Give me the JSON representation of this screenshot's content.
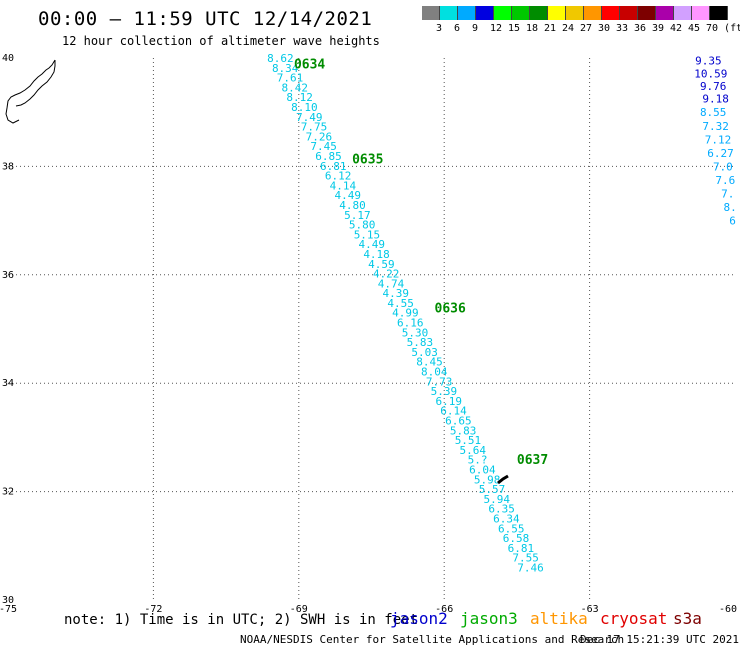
{
  "header": {
    "title": "00:00 – 11:59 UTC 12/14/2021",
    "subtitle": "12 hour collection of altimeter wave heights"
  },
  "legend": {
    "colors": [
      "#808080",
      "#00e0e0",
      "#00aaff",
      "#0000e0",
      "#00ff00",
      "#00c800",
      "#008c00",
      "#ffff00",
      "#f0c800",
      "#ff9600",
      "#ff0000",
      "#c80000",
      "#7d0000",
      "#aa00aa",
      "#d2a0ff",
      "#ff96ff",
      "#000000"
    ],
    "labels": [
      "3",
      "6",
      "9",
      "12",
      "15",
      "18",
      "21",
      "24",
      "27",
      "30",
      "33",
      "36",
      "39",
      "42",
      "45",
      "70 (ft)"
    ]
  },
  "chart_data": {
    "type": "scatter",
    "title": "12 hour collection of altimeter wave heights",
    "xlim": [
      -75,
      -60
    ],
    "ylim": [
      30,
      40
    ],
    "x_ticks": [
      -75,
      -72,
      -69,
      -66,
      -63,
      -60
    ],
    "y_ticks": [
      30,
      32,
      34,
      36,
      38,
      40
    ],
    "grid": true,
    "tracks": [
      {
        "name": "jason3",
        "color": "#00c8e6",
        "start": [
          -69.38,
          40.0
        ],
        "end": [
          -64.22,
          30.6
        ],
        "values": [
          "8.62",
          "8.34",
          "7.61",
          "8.42",
          "8.12",
          "8.10",
          "7.49",
          "7.75",
          "7.26",
          "7.45",
          "6.85",
          "6.81",
          "6.12",
          "4.14",
          "4.49",
          "4.80",
          "5.17",
          "5.80",
          "5.15",
          "4.49",
          "4.18",
          "4.59",
          "4.22",
          "4.74",
          "4.39",
          "4.55",
          "4.99",
          "6.16",
          "5.30",
          "5.83",
          "5.03",
          "8.45",
          "8.04",
          "7.73",
          "5.39",
          "6.19",
          "6.14",
          "6.65",
          "5.83",
          "5.51",
          "5.64",
          "5.?",
          "6.04",
          "5.98",
          "5.57",
          "5.94",
          "6.35",
          "6.34",
          "6.55",
          "6.58",
          "6.81",
          "7.55",
          "7.46"
        ],
        "time_labels": [
          {
            "text": "0634",
            "lon": -69.1,
            "lat": 39.9
          },
          {
            "text": "0635",
            "lon": -67.9,
            "lat": 38.15
          },
          {
            "text": "0636",
            "lon": -66.2,
            "lat": 35.4
          },
          {
            "text": "0637",
            "lon": -64.5,
            "lat": 32.6
          }
        ]
      },
      {
        "name": "jason2",
        "color": "#0000cc",
        "start": [
          -60.55,
          39.95
        ],
        "end": [
          -60.4,
          39.25
        ],
        "values": [
          "9.35",
          "10.59",
          "9.76",
          "9.18"
        ]
      },
      {
        "name": "jason2-b",
        "color": "#00aaff",
        "start": [
          -60.45,
          39.0
        ],
        "end": [
          -60.05,
          37.0
        ],
        "values": [
          "8.55",
          "7.32",
          "7.12",
          "6.27",
          "7.0",
          "7.6",
          "7.",
          "8.",
          "6"
        ]
      }
    ]
  },
  "map": {
    "coast_color": "#000000"
  },
  "bottom": {
    "note": "note: 1) Time is in UTC; 2) SWH is in feet",
    "satellites": [
      {
        "name": "jason2",
        "color": "#0000cc"
      },
      {
        "name": "jason3",
        "color": "#00aa00"
      },
      {
        "name": "altika",
        "color": "#ff9600"
      },
      {
        "name": "cryosat",
        "color": "#e00000"
      },
      {
        "name": "s3a",
        "color": "#7d0000"
      }
    ],
    "credit": "NOAA/NESDIS Center for Satellite Applications and Research",
    "timestamp": "Dec 17 15:21:39 UTC 2021"
  }
}
